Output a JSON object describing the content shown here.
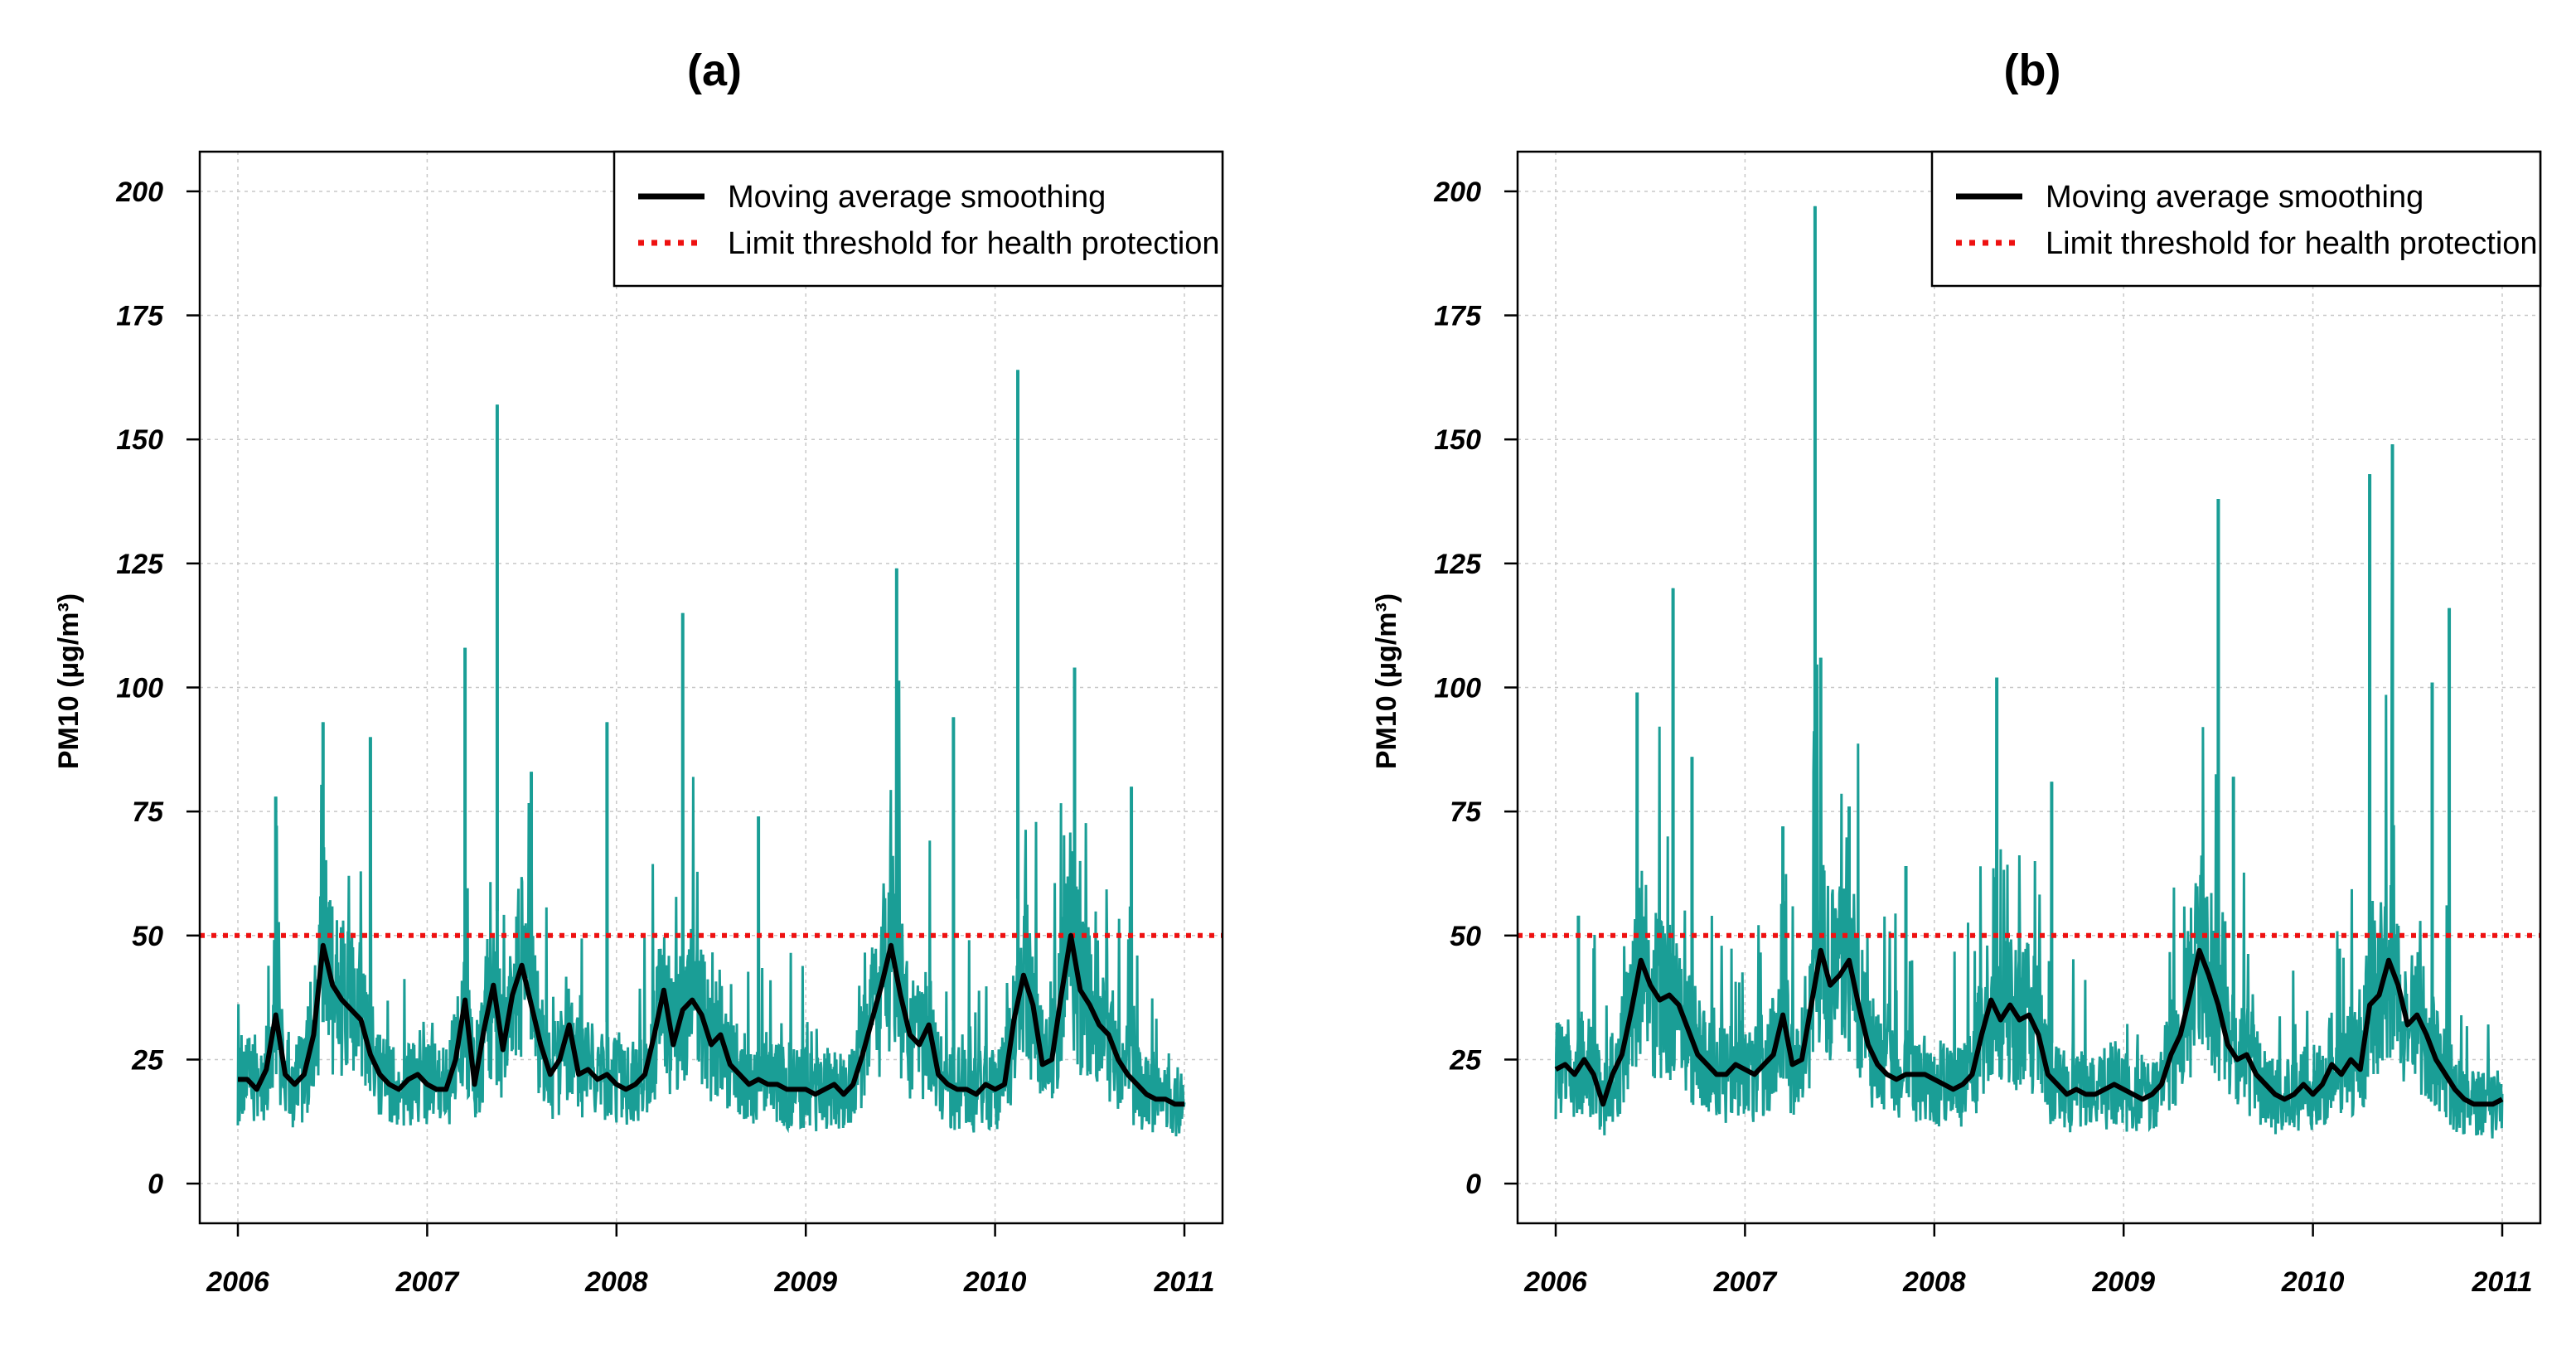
{
  "figure": {
    "colors": {
      "raw": "#1a9e96",
      "smooth": "#000000",
      "threshold": "#ee1111",
      "grid": "#c8c8c8"
    }
  },
  "chart_data": [
    {
      "type": "line",
      "panel_label": "(a)",
      "title": "(a)",
      "ylabel": "PM10 (µg/m³)",
      "xlabel": "",
      "xlim": [
        2006,
        2011
      ],
      "ylim": [
        -8,
        208
      ],
      "y_ticks": [
        "0",
        "25",
        "50",
        "75",
        "100",
        "125",
        "150",
        "175",
        "200"
      ],
      "x_ticks": [
        "2006",
        "2007",
        "2008",
        "2009",
        "2010",
        "2011"
      ],
      "grid": true,
      "legend_position": "top-right",
      "legend": [
        {
          "label": "Moving average smoothing",
          "style": "solid-black"
        },
        {
          "label": "Limit threshold for health protection",
          "style": "dotted-red"
        }
      ],
      "threshold": 50,
      "smooth_series": {
        "name": "Moving average smoothing",
        "x": [
          2006.0,
          2006.05,
          2006.1,
          2006.15,
          2006.2,
          2006.25,
          2006.3,
          2006.35,
          2006.4,
          2006.45,
          2006.5,
          2006.55,
          2006.6,
          2006.65,
          2006.7,
          2006.75,
          2006.8,
          2006.85,
          2006.9,
          2006.95,
          2007.0,
          2007.05,
          2007.1,
          2007.15,
          2007.2,
          2007.25,
          2007.3,
          2007.35,
          2007.4,
          2007.45,
          2007.5,
          2007.55,
          2007.6,
          2007.65,
          2007.7,
          2007.75,
          2007.8,
          2007.85,
          2007.9,
          2007.95,
          2008.0,
          2008.05,
          2008.1,
          2008.15,
          2008.2,
          2008.25,
          2008.3,
          2008.35,
          2008.4,
          2008.45,
          2008.5,
          2008.55,
          2008.6,
          2008.65,
          2008.7,
          2008.75,
          2008.8,
          2008.85,
          2008.9,
          2008.95,
          2009.0,
          2009.05,
          2009.1,
          2009.15,
          2009.2,
          2009.25,
          2009.3,
          2009.35,
          2009.4,
          2009.45,
          2009.5,
          2009.55,
          2009.6,
          2009.65,
          2009.7,
          2009.75,
          2009.8,
          2009.85,
          2009.9,
          2009.95,
          2010.0,
          2010.05,
          2010.1,
          2010.15,
          2010.2,
          2010.25,
          2010.3,
          2010.35,
          2010.4,
          2010.45,
          2010.5,
          2010.55,
          2010.6,
          2010.65,
          2010.7,
          2010.75,
          2010.8,
          2010.85,
          2010.9,
          2010.95,
          2011.0
        ],
        "y": [
          21,
          21,
          19,
          23,
          34,
          22,
          20,
          22,
          30,
          48,
          40,
          37,
          35,
          33,
          26,
          22,
          20,
          19,
          21,
          22,
          20,
          19,
          19,
          25,
          37,
          20,
          31,
          40,
          27,
          38,
          44,
          36,
          28,
          22,
          25,
          32,
          22,
          23,
          21,
          22,
          20,
          19,
          20,
          22,
          30,
          39,
          28,
          35,
          37,
          34,
          28,
          30,
          24,
          22,
          20,
          21,
          20,
          20,
          19,
          19,
          19,
          18,
          19,
          20,
          18,
          20,
          26,
          33,
          40,
          48,
          38,
          30,
          28,
          32,
          22,
          20,
          19,
          19,
          18,
          20,
          19,
          20,
          33,
          42,
          36,
          24,
          25,
          38,
          50,
          39,
          36,
          32,
          30,
          25,
          22,
          20,
          18,
          17,
          17,
          16,
          16
        ]
      },
      "raw_peaks": [
        {
          "x": 2006.2,
          "y": 78
        },
        {
          "x": 2006.45,
          "y": 93
        },
        {
          "x": 2006.7,
          "y": 90
        },
        {
          "x": 2007.2,
          "y": 108
        },
        {
          "x": 2007.37,
          "y": 157
        },
        {
          "x": 2007.55,
          "y": 83
        },
        {
          "x": 2007.95,
          "y": 93
        },
        {
          "x": 2008.35,
          "y": 115
        },
        {
          "x": 2008.75,
          "y": 74
        },
        {
          "x": 2009.48,
          "y": 124
        },
        {
          "x": 2009.78,
          "y": 94
        },
        {
          "x": 2010.12,
          "y": 164
        },
        {
          "x": 2010.42,
          "y": 104
        },
        {
          "x": 2010.72,
          "y": 80
        }
      ]
    },
    {
      "type": "line",
      "panel_label": "(b)",
      "title": "(b)",
      "ylabel": "PM10 (µg/m³)",
      "xlabel": "",
      "xlim": [
        2006,
        2011
      ],
      "ylim": [
        -8,
        208
      ],
      "y_ticks": [
        "0",
        "25",
        "50",
        "75",
        "100",
        "125",
        "150",
        "175",
        "200"
      ],
      "x_ticks": [
        "2006",
        "2007",
        "2008",
        "2009",
        "2010",
        "2011"
      ],
      "grid": true,
      "legend_position": "top-right",
      "legend": [
        {
          "label": "Moving average smoothing",
          "style": "solid-black"
        },
        {
          "label": "Limit threshold for health protection",
          "style": "dotted-red"
        }
      ],
      "threshold": 50,
      "smooth_series": {
        "name": "Moving average smoothing",
        "x": [
          2006.0,
          2006.05,
          2006.1,
          2006.15,
          2006.2,
          2006.25,
          2006.3,
          2006.35,
          2006.4,
          2006.45,
          2006.5,
          2006.55,
          2006.6,
          2006.65,
          2006.7,
          2006.75,
          2006.8,
          2006.85,
          2006.9,
          2006.95,
          2007.0,
          2007.05,
          2007.1,
          2007.15,
          2007.2,
          2007.25,
          2007.3,
          2007.35,
          2007.4,
          2007.45,
          2007.5,
          2007.55,
          2007.6,
          2007.65,
          2007.7,
          2007.75,
          2007.8,
          2007.85,
          2007.9,
          2007.95,
          2008.0,
          2008.05,
          2008.1,
          2008.15,
          2008.2,
          2008.25,
          2008.3,
          2008.35,
          2008.4,
          2008.45,
          2008.5,
          2008.55,
          2008.6,
          2008.65,
          2008.7,
          2008.75,
          2008.8,
          2008.85,
          2008.9,
          2008.95,
          2009.0,
          2009.05,
          2009.1,
          2009.15,
          2009.2,
          2009.25,
          2009.3,
          2009.35,
          2009.4,
          2009.45,
          2009.5,
          2009.55,
          2009.6,
          2009.65,
          2009.7,
          2009.75,
          2009.8,
          2009.85,
          2009.9,
          2009.95,
          2010.0,
          2010.05,
          2010.1,
          2010.15,
          2010.2,
          2010.25,
          2010.3,
          2010.35,
          2010.4,
          2010.45,
          2010.5,
          2010.55,
          2010.6,
          2010.65,
          2010.7,
          2010.75,
          2010.8,
          2010.85,
          2010.9,
          2010.95,
          2011.0
        ],
        "y": [
          23,
          24,
          22,
          25,
          22,
          16,
          22,
          26,
          35,
          45,
          40,
          37,
          38,
          36,
          31,
          26,
          24,
          22,
          22,
          24,
          23,
          22,
          24,
          26,
          34,
          24,
          25,
          36,
          47,
          40,
          42,
          45,
          36,
          28,
          24,
          22,
          21,
          22,
          22,
          22,
          21,
          20,
          19,
          20,
          22,
          30,
          37,
          33,
          36,
          33,
          34,
          30,
          22,
          20,
          18,
          19,
          18,
          18,
          19,
          20,
          19,
          18,
          17,
          18,
          20,
          26,
          30,
          38,
          47,
          42,
          36,
          28,
          25,
          26,
          22,
          20,
          18,
          17,
          18,
          20,
          18,
          20,
          24,
          22,
          25,
          23,
          36,
          38,
          45,
          40,
          32,
          34,
          30,
          25,
          22,
          19,
          17,
          16,
          16,
          16,
          17
        ]
      },
      "raw_peaks": [
        {
          "x": 2006.12,
          "y": 54
        },
        {
          "x": 2006.43,
          "y": 99
        },
        {
          "x": 2006.62,
          "y": 120
        },
        {
          "x": 2006.72,
          "y": 86
        },
        {
          "x": 2007.2,
          "y": 72
        },
        {
          "x": 2007.37,
          "y": 197
        },
        {
          "x": 2007.4,
          "y": 106
        },
        {
          "x": 2007.55,
          "y": 76
        },
        {
          "x": 2007.85,
          "y": 64
        },
        {
          "x": 2008.33,
          "y": 102
        },
        {
          "x": 2008.62,
          "y": 81
        },
        {
          "x": 2009.5,
          "y": 138
        },
        {
          "x": 2009.58,
          "y": 82
        },
        {
          "x": 2010.3,
          "y": 143
        },
        {
          "x": 2010.42,
          "y": 149
        },
        {
          "x": 2010.63,
          "y": 101
        },
        {
          "x": 2010.72,
          "y": 116
        }
      ]
    }
  ]
}
